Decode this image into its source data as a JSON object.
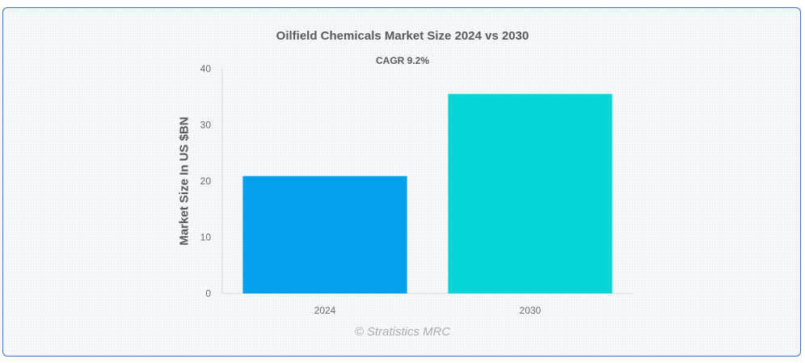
{
  "chart_data": {
    "type": "bar",
    "title": "Oilfield Chemicals Market Size 2024 vs 2030",
    "subtitle": "CAGR 9.2%",
    "xlabel": "",
    "ylabel": "Market Size In US $BN",
    "categories": [
      "2024",
      "2030"
    ],
    "values": [
      20.9,
      35.5
    ],
    "colors": [
      "#069fea",
      "#08d5d5"
    ],
    "ylim": [
      0,
      40
    ],
    "yticks": [
      0,
      10,
      20,
      30,
      40
    ],
    "grid": false,
    "legend": "none"
  },
  "credit": "© Stratistics MRC"
}
